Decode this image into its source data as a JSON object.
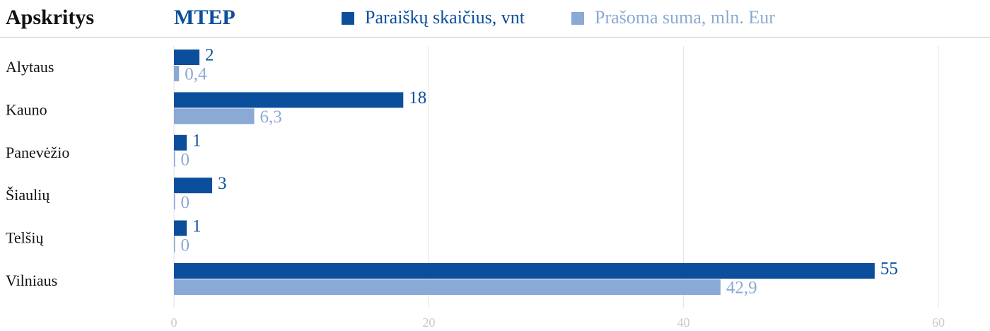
{
  "chart_data": {
    "type": "hbar",
    "title": "MTEP",
    "y_label": "Apskritys",
    "categories": [
      "Alytaus",
      "Kauno",
      "Panevėžio",
      "Šiaulių",
      "Telšių",
      "Vilniaus"
    ],
    "series": [
      {
        "name": "Paraiškų skaičius, vnt",
        "color": "#0b4f9c",
        "values": [
          2,
          18,
          1,
          3,
          1,
          55
        ]
      },
      {
        "name": "Prašoma suma, mln. Eur",
        "color": "#8aa9d4",
        "values": [
          0.4,
          6.3,
          0,
          0,
          0,
          42.9
        ],
        "value_labels": [
          "0,4",
          "6,3",
          "0",
          "0",
          "0",
          "42,9"
        ]
      }
    ],
    "xlim": [
      0,
      60
    ],
    "xticks": [
      0,
      20,
      40,
      60
    ],
    "grid": true
  }
}
